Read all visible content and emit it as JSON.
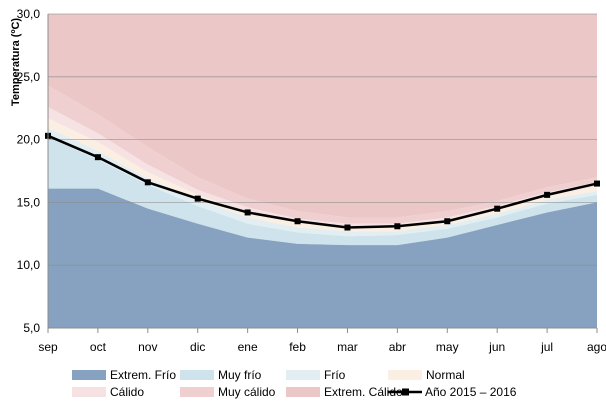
{
  "chart_data": {
    "type": "area",
    "title": "",
    "xlabel": "",
    "ylabel": "Temperatura (ºC)",
    "ylim": [
      5,
      30
    ],
    "yticks": [
      "5,0",
      "10,0",
      "15,0",
      "20,0",
      "25,0",
      "30,0"
    ],
    "ytick_values": [
      5,
      10,
      15,
      20,
      25,
      30
    ],
    "grid": true,
    "legend_position": "bottom",
    "categories": [
      "sep",
      "oct",
      "nov",
      "dic",
      "ene",
      "feb",
      "mar",
      "abr",
      "may",
      "jun",
      "jul",
      "ago"
    ],
    "bands": [
      {
        "name": "Extrem. Frío",
        "color": "#86a2c0",
        "upper": [
          16.1,
          16.1,
          14.5,
          13.3,
          12.2,
          11.7,
          11.6,
          11.6,
          12.2,
          13.2,
          14.2,
          15.0
        ]
      },
      {
        "name": "Muy frío",
        "color": "#cfe3ec",
        "upper": [
          20.2,
          18.4,
          16.4,
          14.7,
          13.3,
          12.6,
          12.3,
          12.4,
          12.9,
          13.8,
          14.9,
          15.6
        ]
      },
      {
        "name": "Frío",
        "color": "#e2eef2",
        "upper": [
          20.9,
          19.1,
          16.9,
          15.2,
          13.8,
          13.0,
          12.7,
          12.7,
          13.2,
          14.1,
          15.2,
          15.9
        ]
      },
      {
        "name": "Normal",
        "color": "#fbeee2",
        "upper": [
          21.7,
          19.8,
          17.4,
          15.6,
          14.2,
          13.4,
          13.0,
          13.0,
          13.5,
          14.4,
          15.5,
          16.3
        ]
      },
      {
        "name": "Cálido",
        "color": "#f6e2e3",
        "upper": [
          22.6,
          20.5,
          18.0,
          16.0,
          14.6,
          13.7,
          13.3,
          13.3,
          13.8,
          14.7,
          15.8,
          16.6
        ]
      },
      {
        "name": "Muy cálido",
        "color": "#efcfd0",
        "upper": [
          24.3,
          22.0,
          19.4,
          17.0,
          15.3,
          14.3,
          13.8,
          13.8,
          14.3,
          15.1,
          16.2,
          17.0
        ]
      },
      {
        "name": "Extrem. Cálido",
        "color": "#ecc7c8",
        "upper": [
          30,
          30,
          30,
          30,
          30,
          30,
          30,
          30,
          30,
          30,
          30,
          30
        ]
      }
    ],
    "series": [
      {
        "name": "Año 2015 – 2016",
        "color": "#000000",
        "values": [
          20.3,
          18.6,
          16.6,
          15.3,
          14.2,
          13.5,
          13.0,
          13.1,
          13.5,
          14.5,
          15.6,
          16.5
        ]
      }
    ]
  }
}
